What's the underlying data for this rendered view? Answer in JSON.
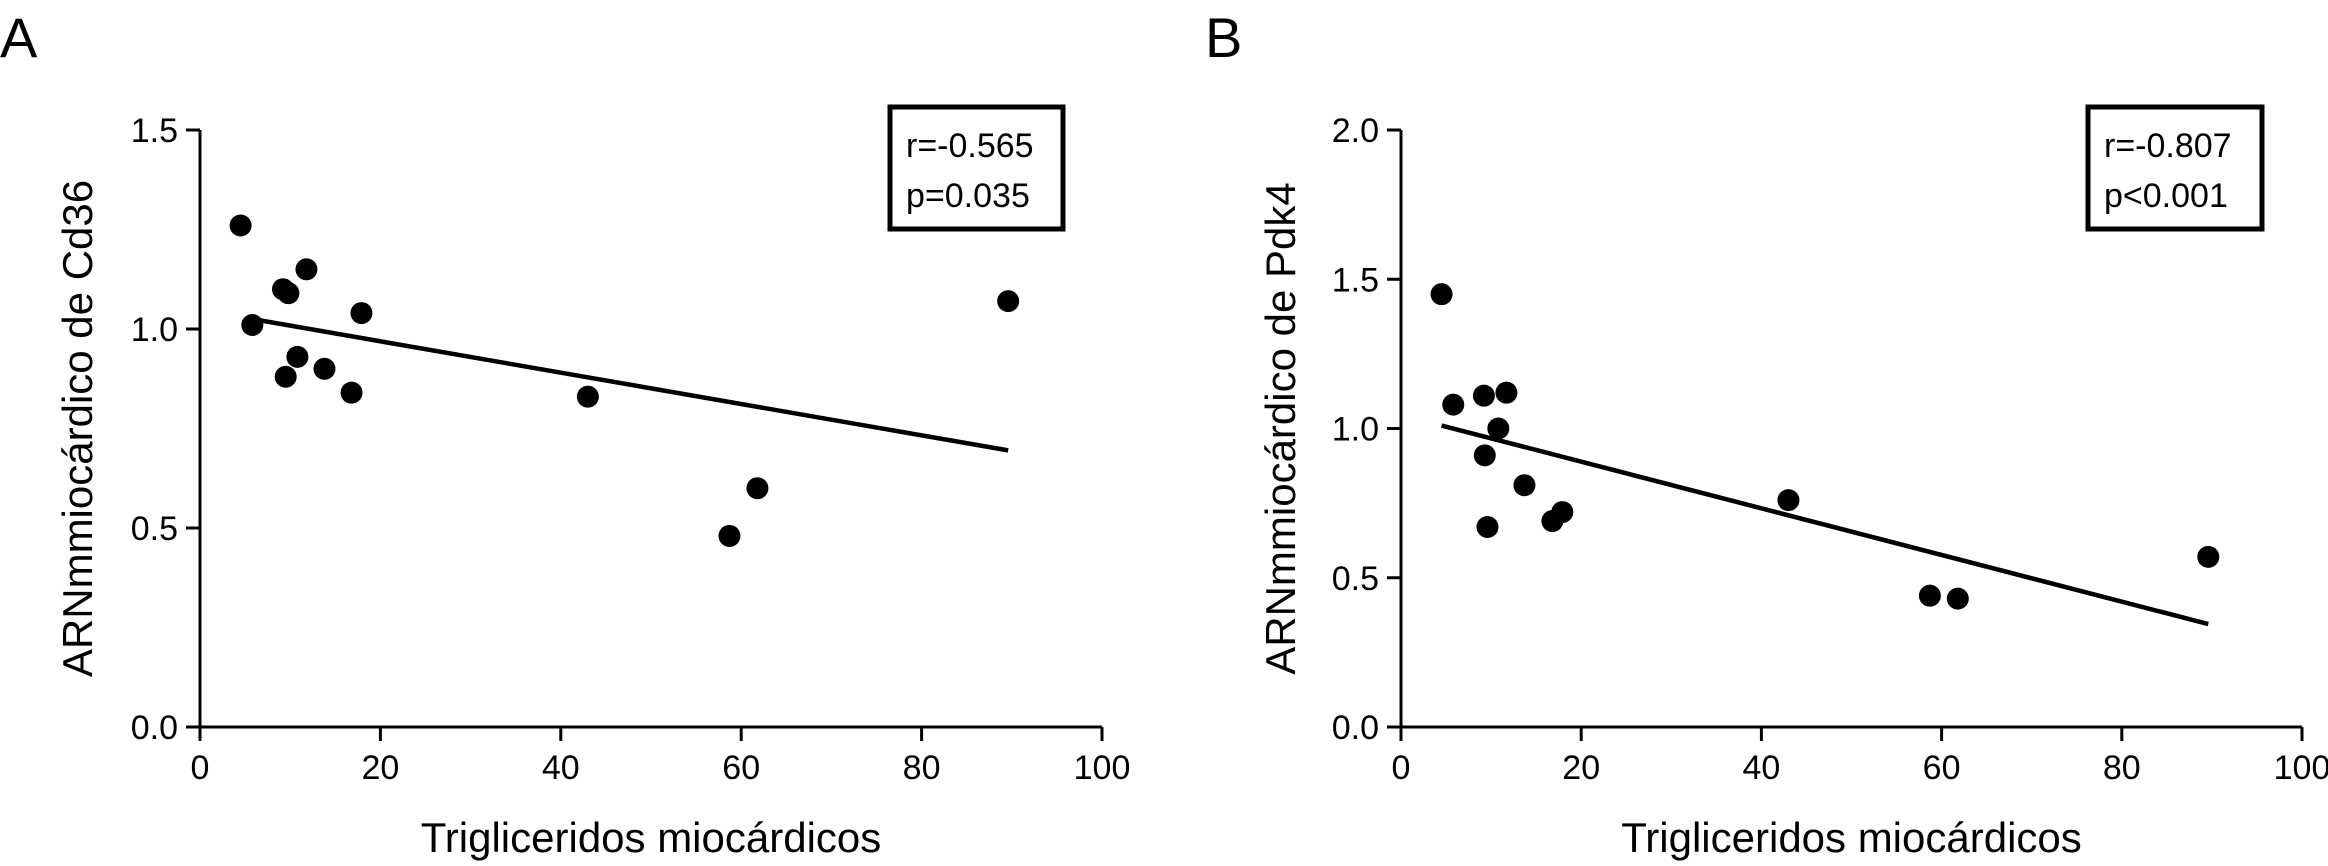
{
  "chart_data": [
    {
      "type": "scatter",
      "panel": "A",
      "xlabel": "Trigliceridos miocárdicos",
      "ylabel": "ARNmmiocárdico de Cd36",
      "xlim": [
        0,
        100
      ],
      "ylim": [
        0.0,
        1.5
      ],
      "xticks": [
        0,
        20,
        40,
        60,
        80,
        100
      ],
      "xtick_labels": [
        "0",
        "20",
        "40",
        "60",
        "80",
        "100"
      ],
      "yticks": [
        0.0,
        0.5,
        1.0,
        1.5
      ],
      "ytick_labels": [
        "0.0",
        "0.5",
        "1.0",
        "1.5"
      ],
      "points": [
        {
          "x": 4.5,
          "y": 1.26
        },
        {
          "x": 5.8,
          "y": 1.01
        },
        {
          "x": 9.2,
          "y": 1.1
        },
        {
          "x": 9.5,
          "y": 0.88
        },
        {
          "x": 9.8,
          "y": 1.09
        },
        {
          "x": 10.8,
          "y": 0.93
        },
        {
          "x": 11.8,
          "y": 1.15
        },
        {
          "x": 13.8,
          "y": 0.9
        },
        {
          "x": 16.8,
          "y": 0.84
        },
        {
          "x": 17.9,
          "y": 1.04
        },
        {
          "x": 43.0,
          "y": 0.83
        },
        {
          "x": 58.7,
          "y": 0.48
        },
        {
          "x": 61.8,
          "y": 0.6
        },
        {
          "x": 89.6,
          "y": 1.07
        }
      ],
      "fit_line": {
        "x": [
          5.8,
          89.6
        ],
        "y": [
          1.025,
          0.695
        ]
      },
      "grid": false,
      "annotation": {
        "r": "r=-0.565",
        "p": "p=0.035"
      }
    },
    {
      "type": "scatter",
      "panel": "B",
      "xlabel": "Trigliceridos miocárdicos",
      "ylabel": "ARNmmiocárdico de Pdk4",
      "xlim": [
        0,
        100
      ],
      "ylim": [
        0.0,
        2.0
      ],
      "xticks": [
        0,
        20,
        40,
        60,
        80,
        100
      ],
      "xtick_labels": [
        "0",
        "20",
        "40",
        "60",
        "80",
        "100"
      ],
      "yticks": [
        0.0,
        0.5,
        1.0,
        1.5,
        2.0
      ],
      "ytick_labels": [
        "0.0",
        "0.5",
        "1.0",
        "1.5",
        "2.0"
      ],
      "points": [
        {
          "x": 4.5,
          "y": 1.45
        },
        {
          "x": 5.8,
          "y": 1.08
        },
        {
          "x": 9.2,
          "y": 1.11
        },
        {
          "x": 9.3,
          "y": 0.91
        },
        {
          "x": 9.6,
          "y": 0.67
        },
        {
          "x": 10.8,
          "y": 1.0
        },
        {
          "x": 11.7,
          "y": 1.12
        },
        {
          "x": 13.7,
          "y": 0.81
        },
        {
          "x": 16.8,
          "y": 0.69
        },
        {
          "x": 17.9,
          "y": 0.72
        },
        {
          "x": 43.0,
          "y": 0.76
        },
        {
          "x": 58.7,
          "y": 0.44
        },
        {
          "x": 61.8,
          "y": 0.43
        },
        {
          "x": 89.6,
          "y": 0.57
        }
      ],
      "fit_line": {
        "x": [
          4.5,
          89.6
        ],
        "y": [
          1.01,
          0.345
        ]
      },
      "grid": false,
      "annotation": {
        "r": "r=-0.807",
        "p": "p<0.001"
      }
    }
  ]
}
